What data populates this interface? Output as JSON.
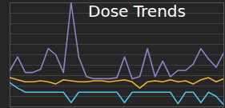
{
  "chart_data": {
    "type": "line",
    "title": "Dose Trends",
    "series": [
      {
        "color": "#8e84c4",
        "values": [
          35,
          48,
          33,
          33,
          36,
          56,
          50,
          33,
          100,
          48,
          29,
          27,
          27,
          27,
          28,
          48,
          27,
          29,
          56,
          29,
          44,
          29,
          35,
          35,
          41,
          56,
          46,
          38,
          52
        ]
      },
      {
        "color": "#f2b134",
        "values": [
          28,
          26,
          24,
          24,
          25,
          24,
          22,
          26,
          25,
          24,
          24,
          25,
          25,
          24,
          25,
          26,
          24,
          18,
          24,
          25,
          24,
          26,
          24,
          25,
          22,
          26,
          28,
          24,
          27
        ]
      },
      {
        "color": "#4fc3e8",
        "values": [
          23,
          18,
          14,
          14,
          14,
          14,
          14,
          14,
          4,
          14,
          14,
          14,
          14,
          14,
          14,
          4,
          14,
          14,
          14,
          14,
          14,
          14,
          3,
          14,
          14,
          4,
          14,
          10,
          2
        ]
      }
    ],
    "ylim": [
      0,
      100
    ],
    "yticks": [
      0,
      10,
      20,
      30,
      40,
      50,
      60,
      70,
      80,
      90,
      100
    ],
    "grid": true,
    "tick_labels": false
  }
}
